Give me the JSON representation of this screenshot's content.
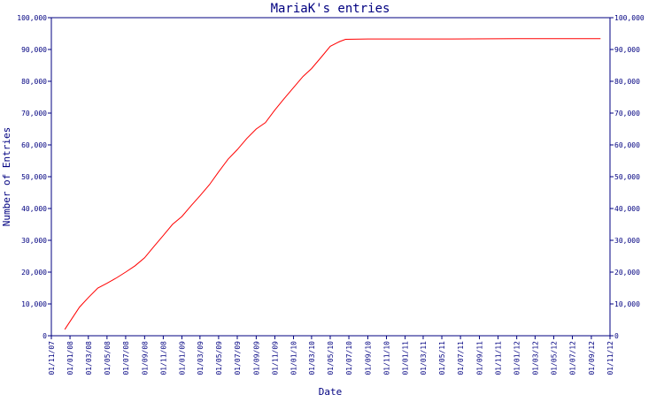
{
  "chart_data": {
    "type": "line",
    "title": "MariaK's entries",
    "xlabel": "Date",
    "ylabel": "Number of Entries",
    "ylim": [
      0,
      100000
    ],
    "xlim": [
      "2007-11-01",
      "2012-11-01"
    ],
    "grid": false,
    "legend": "none",
    "colors": {
      "line": "#ff0000",
      "axis": "#000080",
      "text": "#000080"
    },
    "y_ticks": [
      {
        "value": 0,
        "label": "0"
      },
      {
        "value": 10000,
        "label": "10,000"
      },
      {
        "value": 20000,
        "label": "20,000"
      },
      {
        "value": 30000,
        "label": "30,000"
      },
      {
        "value": 40000,
        "label": "40,000"
      },
      {
        "value": 50000,
        "label": "50,000"
      },
      {
        "value": 60000,
        "label": "60,000"
      },
      {
        "value": 70000,
        "label": "70,000"
      },
      {
        "value": 80000,
        "label": "80,000"
      },
      {
        "value": 90000,
        "label": "90,000"
      },
      {
        "value": 100000,
        "label": "100,000"
      }
    ],
    "x_ticks": [
      {
        "date": "2007-11-01",
        "label": "01/11/07"
      },
      {
        "date": "2008-01-01",
        "label": "01/01/08"
      },
      {
        "date": "2008-03-01",
        "label": "01/03/08"
      },
      {
        "date": "2008-05-01",
        "label": "01/05/08"
      },
      {
        "date": "2008-07-01",
        "label": "01/07/08"
      },
      {
        "date": "2008-09-01",
        "label": "01/09/08"
      },
      {
        "date": "2008-11-01",
        "label": "01/11/08"
      },
      {
        "date": "2009-01-01",
        "label": "01/01/09"
      },
      {
        "date": "2009-03-01",
        "label": "01/03/09"
      },
      {
        "date": "2009-05-01",
        "label": "01/05/09"
      },
      {
        "date": "2009-07-01",
        "label": "01/07/09"
      },
      {
        "date": "2009-09-01",
        "label": "01/09/09"
      },
      {
        "date": "2009-11-01",
        "label": "01/11/09"
      },
      {
        "date": "2010-01-01",
        "label": "01/01/10"
      },
      {
        "date": "2010-03-01",
        "label": "01/03/10"
      },
      {
        "date": "2010-05-01",
        "label": "01/05/10"
      },
      {
        "date": "2010-07-01",
        "label": "01/07/10"
      },
      {
        "date": "2010-09-01",
        "label": "01/09/10"
      },
      {
        "date": "2010-11-01",
        "label": "01/11/10"
      },
      {
        "date": "2011-01-01",
        "label": "01/01/11"
      },
      {
        "date": "2011-03-01",
        "label": "01/03/11"
      },
      {
        "date": "2011-05-01",
        "label": "01/05/11"
      },
      {
        "date": "2011-07-01",
        "label": "01/07/11"
      },
      {
        "date": "2011-09-01",
        "label": "01/09/11"
      },
      {
        "date": "2011-11-01",
        "label": "01/11/11"
      },
      {
        "date": "2012-01-01",
        "label": "01/01/12"
      },
      {
        "date": "2012-03-01",
        "label": "01/03/12"
      },
      {
        "date": "2012-05-01",
        "label": "01/05/12"
      },
      {
        "date": "2012-07-01",
        "label": "01/07/12"
      },
      {
        "date": "2012-09-01",
        "label": "01/09/12"
      },
      {
        "date": "2012-11-01",
        "label": "01/11/12"
      }
    ],
    "series": [
      {
        "x": [
          "2007-12-15",
          "2008-02-01",
          "2008-03-01",
          "2008-04-01",
          "2008-05-01",
          "2008-06-01",
          "2008-07-01",
          "2008-08-01",
          "2008-09-01",
          "2008-10-01",
          "2008-11-01",
          "2008-12-01",
          "2009-01-01",
          "2009-02-01",
          "2009-03-01",
          "2009-04-01",
          "2009-05-01",
          "2009-06-01",
          "2009-07-01",
          "2009-08-01",
          "2009-09-01",
          "2009-10-01",
          "2009-11-01",
          "2009-12-01",
          "2010-01-01",
          "2010-02-01",
          "2010-03-01",
          "2010-04-01",
          "2010-05-01",
          "2010-06-01",
          "2010-06-20",
          "2010-09-01",
          "2011-01-01",
          "2011-06-01",
          "2012-01-01",
          "2012-06-01",
          "2012-10-01"
        ],
        "y": [
          2000,
          9000,
          12000,
          15000,
          16500,
          18200,
          20000,
          22000,
          24500,
          28000,
          31500,
          35000,
          37500,
          41000,
          44000,
          47500,
          51500,
          55500,
          58500,
          62000,
          65000,
          67000,
          71000,
          74500,
          78000,
          81500,
          84000,
          87500,
          91000,
          92500,
          93200,
          93300,
          93300,
          93300,
          93400,
          93400,
          93400
        ]
      }
    ]
  }
}
